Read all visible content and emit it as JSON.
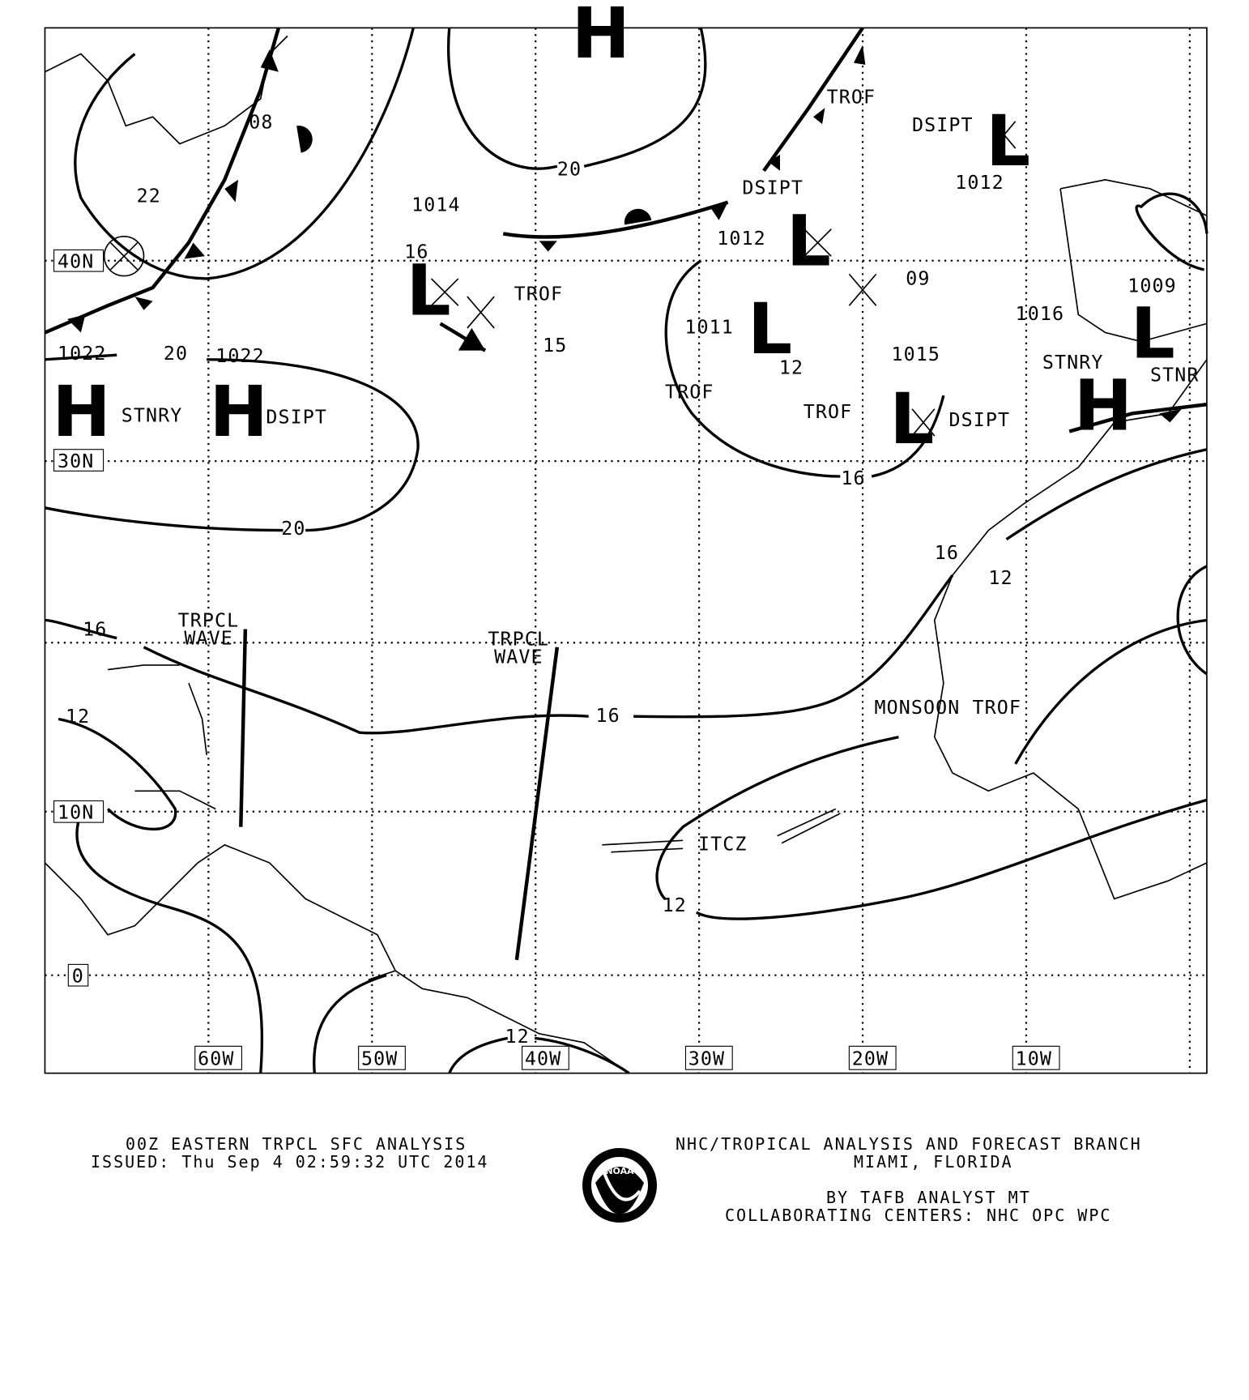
{
  "map": {
    "grid_labels": {
      "lat": [
        "40N",
        "30N",
        "10N",
        "0"
      ],
      "lon": [
        "60W",
        "50W",
        "40W",
        "30W",
        "20W",
        "10W"
      ]
    },
    "pressure_centers": [
      "H",
      "H",
      "H",
      "H",
      "L",
      "L",
      "L",
      "L",
      "L",
      "L"
    ],
    "labels": [
      "08",
      "22",
      "1014",
      "20",
      "DSIPT",
      "TROF",
      "DSIPT",
      "1012",
      "1012",
      "16",
      "TROF",
      "15",
      "1011",
      "12",
      "09",
      "1016",
      "1009",
      "STNRY",
      "STNR",
      "1022",
      "20",
      "1022",
      "STNRY",
      "DSIPT",
      "TROF",
      "TROF",
      "1015",
      "DSIPT",
      "16",
      "20",
      "16",
      "12",
      "TRPCL",
      "WAVE",
      "TRPCL",
      "WAVE",
      "16",
      "16",
      "12",
      "MONSOON TROF",
      "ITCZ",
      "12",
      "12"
    ]
  },
  "footer": {
    "left_line1": "00Z EASTERN TRPCL SFC ANALYSIS",
    "left_line2": "ISSUED: Thu Sep 4 02:59:32 UTC 2014",
    "right_line1": "NHC/TROPICAL ANALYSIS AND FORECAST BRANCH",
    "right_line2": "MIAMI,  FLORIDA",
    "right_line3": "BY TAFB ANALYST  MT",
    "right_line4": "COLLABORATING CENTERS: NHC OPC WPC",
    "logo_text": "NOAA"
  }
}
